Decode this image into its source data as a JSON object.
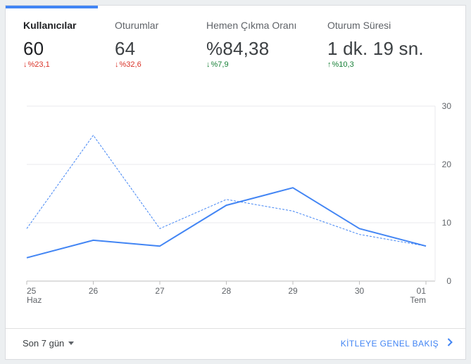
{
  "metrics": [
    {
      "label": "Kullanıcılar",
      "value": "60",
      "delta": "%23,1",
      "direction": "down",
      "delta_color": "#d93025",
      "active": true
    },
    {
      "label": "Oturumlar",
      "value": "64",
      "delta": "%32,6",
      "direction": "down",
      "delta_color": "#d93025",
      "active": false
    },
    {
      "label": "Hemen Çıkma Oranı",
      "value": "%84,38",
      "delta": "%7,9",
      "direction": "down",
      "delta_color": "#188038",
      "active": false
    },
    {
      "label": "Oturum Süresi",
      "value": "1 dk. 19 sn.",
      "delta": "%10,3",
      "direction": "up",
      "delta_color": "#188038",
      "active": false
    }
  ],
  "colors": {
    "accent": "#4285f4",
    "negative": "#d93025",
    "positive": "#188038"
  },
  "chart_data": {
    "type": "line",
    "x_labels": [
      "25",
      "26",
      "27",
      "28",
      "29",
      "30",
      "01"
    ],
    "x_sublabels": [
      "Haz",
      "",
      "",
      "",
      "",
      "",
      "Tem"
    ],
    "y_ticks": [
      0,
      10,
      20,
      30
    ],
    "ylim": [
      0,
      30
    ],
    "grid": true,
    "y_axis_position": "right",
    "series": [
      {
        "style": "solid",
        "color": "#4285f4",
        "values": [
          4,
          7,
          6,
          13,
          16,
          9,
          6
        ]
      },
      {
        "style": "dashed",
        "color": "#4285f4",
        "values": [
          9,
          25,
          9,
          14,
          12,
          8,
          6
        ]
      }
    ]
  },
  "footer": {
    "range_label": "Son 7 gün",
    "overview_link": "KİTLEYE GENEL BAKIŞ"
  }
}
